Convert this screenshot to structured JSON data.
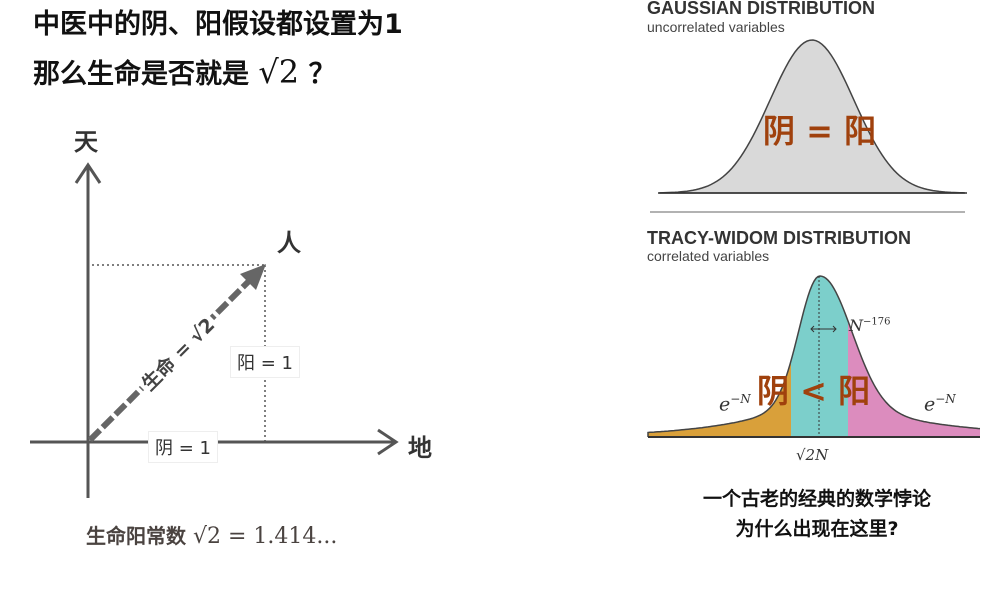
{
  "left": {
    "title_line1": "中医中的阴、阳假设都设置为1",
    "title_line2_prefix": "那么生命是否就是",
    "title_line2_sqrt": "√2",
    "title_line2_suffix": "？",
    "axis_y_label": "天",
    "axis_x_label": "地",
    "vector_label": "人",
    "yang_label": "阳 = 1",
    "yin_label": "阴 = 1",
    "life_label": "生命 = √2",
    "constant_prefix": "生命阳常数",
    "constant_value": "√2 = 1.414..."
  },
  "right": {
    "gaussian_title": "GAUSSIAN  DISTRIBUTION",
    "gaussian_sub": "uncorrelated  variables",
    "gaussian_eq": "阴 = 阳",
    "tw_title": "TRACY-WIDOM DISTRIBUTION",
    "tw_sub": "correlated  variables",
    "tw_eq": "阴 < 阳",
    "tw_width_label": "N",
    "tw_width_exp": "−176",
    "tail_left_base": "e",
    "tail_left_exp": "−N",
    "tail_right_base": "e",
    "tail_right_exp": "−N",
    "tw_center_label": "√2N",
    "bottom_line1": "一个古老的经典的数学悖论",
    "bottom_line2": "为什么出现在这里?",
    "colors": {
      "gaussian_fill": "#d9d9d9",
      "left_tail": "#d9a03a",
      "center": "#7ccfcb",
      "right_tail": "#dc8cbe",
      "eq_text": "#a0410d"
    }
  }
}
